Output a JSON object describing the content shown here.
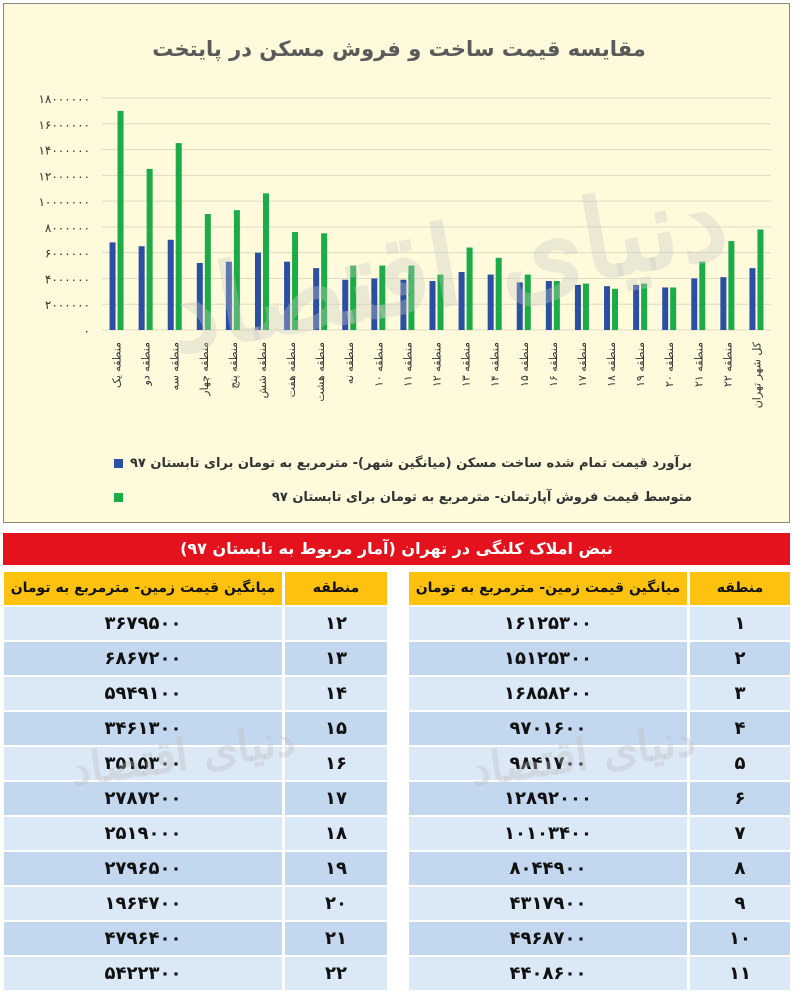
{
  "watermark": "دنیای اقتصاد",
  "colors": {
    "blue_series": "#2b4fa2",
    "green_series": "#1bab48",
    "banner": "#e3121d",
    "header": "#fcc20f"
  },
  "chart_data": {
    "type": "bar",
    "title": "مقایسه قیمت ساخت و فروش مسکن در پایتخت",
    "categories": [
      "منطقه یک",
      "منطقه دو",
      "منطقه سه",
      "منطقه چهار",
      "منطقه پنج",
      "منطقه شش",
      "منطقه هفت",
      "منطقه هشت",
      "منطقه نه",
      "منطقه ۱۰",
      "منطقه ۱۱",
      "منطقه ۱۲",
      "منطقه ۱۳",
      "منطقه ۱۴",
      "منطقه ۱۵",
      "منطقه ۱۶",
      "منطقه ۱۷",
      "منطقه ۱۸",
      "منطقه ۱۹",
      "منطقه ۲۰",
      "منطقه ۲۱",
      "منطقه ۲۲",
      "کل شهر تهران"
    ],
    "series": [
      {
        "name": "برآورد قیمت تمام شده ساخت مسکن (میانگین شهر)- مترمربع به تومان برای تابستان ۹۷",
        "color": "#2b4fa2",
        "values": [
          6800000,
          6500000,
          7000000,
          5200000,
          5300000,
          6000000,
          5300000,
          4800000,
          3900000,
          4000000,
          3900000,
          3800000,
          4500000,
          4300000,
          3700000,
          3800000,
          3500000,
          3400000,
          3500000,
          3300000,
          4000000,
          4100000,
          4800000
        ]
      },
      {
        "name": "متوسط قیمت فروش آپارتمان- مترمربع به تومان برای تابستان ۹۷",
        "color": "#1bab48",
        "values": [
          17000000,
          12500000,
          14500000,
          9000000,
          9300000,
          10600000,
          7600000,
          7500000,
          5000000,
          5000000,
          5000000,
          4300000,
          6400000,
          5600000,
          4300000,
          3800000,
          3600000,
          3200000,
          3600000,
          3300000,
          5300000,
          6900000,
          7800000
        ]
      }
    ],
    "y_ticks": [
      "۰",
      "۲۰۰۰۰۰۰",
      "۴۰۰۰۰۰۰",
      "۶۰۰۰۰۰۰",
      "۸۰۰۰۰۰۰",
      "۱۰۰۰۰۰۰۰",
      "۱۲۰۰۰۰۰۰",
      "۱۴۰۰۰۰۰۰",
      "۱۶۰۰۰۰۰۰",
      "۱۸۰۰۰۰۰۰"
    ],
    "ylim": [
      0,
      18000000
    ],
    "grid": true,
    "legend_position": "bottom"
  },
  "table": {
    "banner": "نبض املاک کلنگی در تهران (آمار مربوط به تابستان ۹۷)",
    "col_region": "منطقه",
    "col_price": "میانگین قیمت زمین- مترمربع به تومان",
    "right_rows": [
      [
        "۱",
        "۱۶۱۲۵۳۰۰"
      ],
      [
        "۲",
        "۱۵۱۲۵۳۰۰"
      ],
      [
        "۳",
        "۱۶۸۵۸۲۰۰"
      ],
      [
        "۴",
        "۹۷۰۱۶۰۰"
      ],
      [
        "۵",
        "۹۸۴۱۷۰۰"
      ],
      [
        "۶",
        "۱۲۸۹۲۰۰۰"
      ],
      [
        "۷",
        "۱۰۱۰۳۴۰۰"
      ],
      [
        "۸",
        "۸۰۴۴۹۰۰"
      ],
      [
        "۹",
        "۴۳۱۷۹۰۰"
      ],
      [
        "۱۰",
        "۴۹۶۸۷۰۰"
      ],
      [
        "۱۱",
        "۴۴۰۸۶۰۰"
      ]
    ],
    "left_rows": [
      [
        "۱۲",
        "۳۶۷۹۵۰۰"
      ],
      [
        "۱۳",
        "۶۸۶۷۲۰۰"
      ],
      [
        "۱۴",
        "۵۹۴۹۱۰۰"
      ],
      [
        "۱۵",
        "۳۴۶۱۳۰۰"
      ],
      [
        "۱۶",
        "۳۵۱۵۳۰۰"
      ],
      [
        "۱۷",
        "۲۷۸۷۲۰۰"
      ],
      [
        "۱۸",
        "۲۵۱۹۰۰۰"
      ],
      [
        "۱۹",
        "۲۷۹۶۵۰۰"
      ],
      [
        "۲۰",
        "۱۹۶۴۷۰۰"
      ],
      [
        "۲۱",
        "۴۷۹۶۴۰۰"
      ],
      [
        "۲۲",
        "۵۴۲۲۳۰۰"
      ]
    ]
  }
}
